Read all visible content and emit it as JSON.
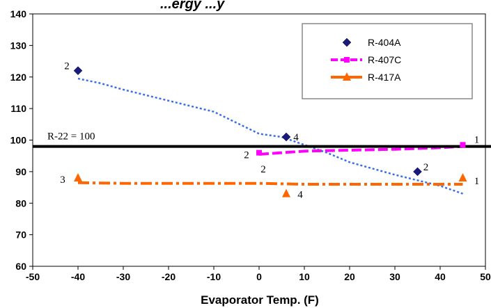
{
  "chart_data": {
    "type": "line",
    "title": "...ergy ...y",
    "xlabel": "Evaporator Temp. (F)",
    "ylabel": "",
    "xlim": [
      -50,
      50
    ],
    "ylim": [
      60,
      140
    ],
    "xticks": [
      -50,
      -40,
      -30,
      -20,
      -10,
      0,
      10,
      20,
      30,
      40,
      50
    ],
    "yticks": [
      60,
      70,
      80,
      90,
      100,
      110,
      120,
      130,
      140
    ],
    "grid": "none",
    "legend_position": "top-right",
    "series": [
      {
        "name": "R-404A",
        "color": "#1a1a7a",
        "marker": "diamond",
        "points": [
          [
            -40,
            122
          ],
          [
            6,
            101
          ],
          [
            35,
            90
          ]
        ],
        "point_labels": [
          "2",
          "4",
          "2"
        ]
      },
      {
        "name": "R-407C",
        "color": "#ff00ff",
        "marker": "square",
        "line_style": "dashed",
        "points": [
          [
            0,
            96
          ],
          [
            45,
            98.5
          ]
        ],
        "point_labels": [
          "2",
          "1"
        ]
      },
      {
        "name": "R-417A",
        "color": "#ff6600",
        "marker": "triangle",
        "points": [
          [
            -40,
            88
          ],
          [
            6,
            83
          ],
          [
            45,
            88
          ]
        ],
        "point_labels": [
          "3",
          "4",
          "1"
        ]
      }
    ],
    "trendlines": [
      {
        "of": "R-404A",
        "color": "#3a6fe8",
        "style": "dotted",
        "points": [
          [
            -40,
            119.5
          ],
          [
            -35,
            118
          ],
          [
            -30,
            116
          ],
          [
            -20,
            112.5
          ],
          [
            -10,
            109
          ],
          [
            0,
            102
          ],
          [
            5,
            101
          ],
          [
            10,
            98.5
          ],
          [
            15,
            96
          ],
          [
            20,
            93
          ],
          [
            30,
            89
          ],
          [
            40,
            85.5
          ],
          [
            45,
            83
          ]
        ]
      },
      {
        "of": "R-407C",
        "color": "#ff00ff",
        "style": "dashed",
        "points": [
          [
            0,
            95.5
          ],
          [
            10,
            96.5
          ],
          [
            20,
            96.8
          ],
          [
            30,
            97.1
          ],
          [
            40,
            97.6
          ],
          [
            45,
            98
          ]
        ]
      },
      {
        "of": "R-417A",
        "color": "#ff6600",
        "style": "dash-dot",
        "points": [
          [
            -40,
            86.5
          ],
          [
            -30,
            86.3
          ],
          [
            -10,
            86.3
          ],
          [
            0,
            86.3
          ],
          [
            10,
            86
          ],
          [
            20,
            86
          ],
          [
            30,
            86
          ],
          [
            45,
            86
          ]
        ]
      }
    ],
    "reference_line": {
      "y": 98,
      "label": "R-22 = 100",
      "color": "#000000"
    },
    "extra_annotations": [
      {
        "text": "2",
        "x": 0,
        "y": 92
      }
    ]
  }
}
